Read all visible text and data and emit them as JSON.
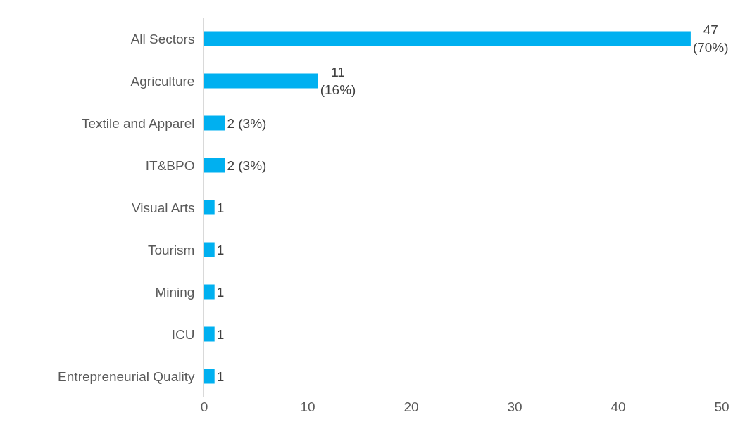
{
  "chart_data": {
    "type": "bar",
    "orientation": "horizontal",
    "categories": [
      "All Sectors",
      "Agriculture",
      "Textile and Apparel",
      "IT&BPO",
      "Visual Arts",
      "Tourism",
      "Mining",
      "ICU",
      "Entrepreneurial Quality"
    ],
    "values": [
      47,
      11,
      2,
      2,
      1,
      1,
      1,
      1,
      1
    ],
    "value_labels": [
      "47\n(70%)",
      "11\n(16%)",
      "2 (3%)",
      "2 (3%)",
      "1",
      "1",
      "1",
      "1",
      "1"
    ],
    "color": "#00b0f0",
    "xlim": [
      0,
      50
    ],
    "xticks": [
      0,
      10,
      20,
      30,
      40,
      50
    ],
    "grid": false
  }
}
